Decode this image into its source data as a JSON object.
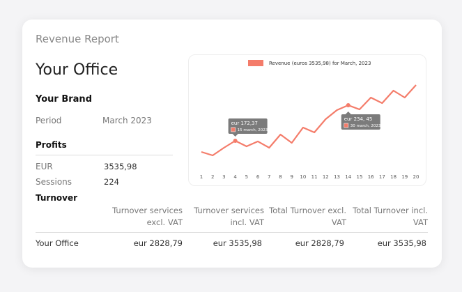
{
  "header": {
    "title": "Revenue Report"
  },
  "office": "Your Office",
  "brand": "Your Brand",
  "period": {
    "label": "Period",
    "value": "March 2023"
  },
  "profits": {
    "title": "Profits",
    "rows": [
      [
        "EUR",
        "3535,98"
      ],
      [
        "Sessions",
        "224"
      ]
    ]
  },
  "turnover": {
    "title": "Turnover",
    "columns": [
      "Turnover services excl. VAT",
      "Turnover services incl. VAT",
      "Total Turnover excl. VAT",
      "Total Turnover incl. VAT"
    ],
    "rows": [
      [
        "Your Office",
        "eur 2828,79",
        "eur 3535,98",
        "eur 2828,79",
        "eur 3535,98"
      ]
    ]
  },
  "chart_data": {
    "type": "line",
    "categories": [
      1,
      2,
      3,
      4,
      5,
      6,
      7,
      8,
      9,
      10,
      11,
      12,
      13,
      14,
      15,
      16,
      17,
      18,
      19,
      20
    ],
    "series": [
      {
        "name": "Revenue (euros 3535,98) for March, 2023",
        "color": "#f47c6a",
        "values": [
          152.9,
          146.8,
          160.2,
          172.37,
          162.6,
          171.2,
          160.2,
          183.3,
          168.7,
          195.5,
          187.0,
          210.1,
          225.9,
          234.45,
          227.1,
          247.8,
          238.1,
          260.0,
          247.8,
          269.7
        ]
      }
    ],
    "annotations": [
      {
        "x": 4,
        "label": "eur 172,37",
        "date": "15 march, 2023"
      },
      {
        "x": 14,
        "label": "eur 234, 45",
        "date": "30 march, 2023"
      }
    ]
  }
}
